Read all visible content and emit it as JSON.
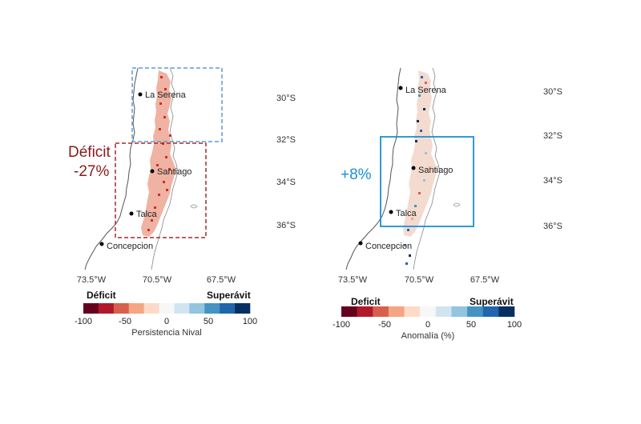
{
  "colors": {
    "deficit_dark": "#67001f",
    "deficit_mid": "#d6604d",
    "neutral": "#f7f7f7",
    "surplus_mid": "#4393c3",
    "surplus_dark": "#053061",
    "annotation_red": "#8b1a1a",
    "annotation_blue": "#1c8fd6",
    "box_blue_dashed": "#5b9bd5"
  },
  "colorbar_palette": [
    "#67001f",
    "#b2182b",
    "#d6604d",
    "#f4a582",
    "#fddbc7",
    "#f7f7f7",
    "#d1e5f0",
    "#92c5de",
    "#4393c3",
    "#2166ac",
    "#053061"
  ],
  "colorbar_ticks": [
    "-100",
    "-50",
    "0",
    "50",
    "100"
  ],
  "left_panel": {
    "lat_labels": [
      "30°S",
      "32°S",
      "34°S",
      "36°S"
    ],
    "lon_labels": [
      "73.5°W",
      "70.5°W",
      "67.5°W"
    ],
    "cities": [
      "La Serena",
      "Santiago",
      "Talca",
      "Concepcion"
    ],
    "annotation_label": "Déficit",
    "annotation_value": "-27%",
    "colorbar_left_label": "Déficit",
    "colorbar_right_label": "Superávit",
    "colorbar_title": "Persistencia Nival"
  },
  "right_panel": {
    "lat_labels": [
      "30°S",
      "32°S",
      "34°S",
      "36°S"
    ],
    "lon_labels": [
      "73.5°W",
      "70.5°W",
      "67.5°W"
    ],
    "cities": [
      "La Serena",
      "Santiago",
      "Talca",
      "Concepcion"
    ],
    "annotation_value": "+8%",
    "colorbar_left_label": "Deficit",
    "colorbar_right_label": "Superávit",
    "colorbar_title": "Anomalía (%)"
  }
}
